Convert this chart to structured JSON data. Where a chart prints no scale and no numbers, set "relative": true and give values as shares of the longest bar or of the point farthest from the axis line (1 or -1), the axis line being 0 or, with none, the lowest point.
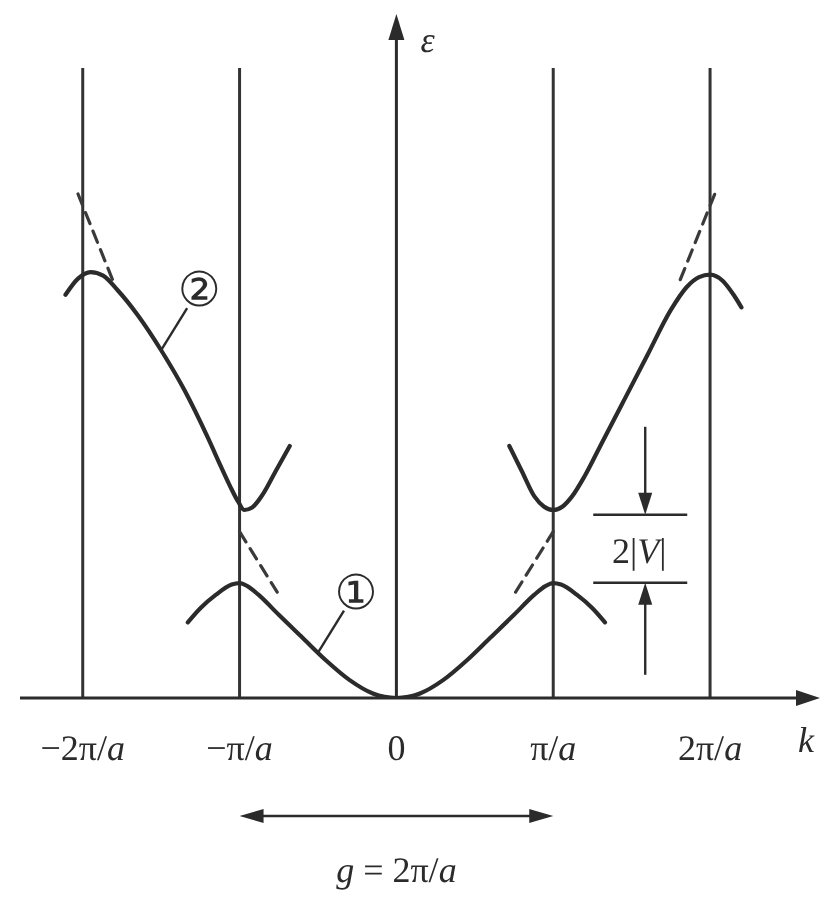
{
  "chart_data": {
    "type": "line",
    "relative": true,
    "xlabel": "k",
    "ylabel": "ε",
    "marker": "none",
    "xlim": [
      -2.4,
      2.65
    ],
    "xticks": [
      {
        "value": -2,
        "label": "−2π/a"
      },
      {
        "value": -1,
        "label": "−π/a"
      },
      0,
      {
        "value": 1,
        "label": "π/a"
      },
      {
        "value": 2,
        "label": "2π/a"
      }
    ],
    "series": [
      {
        "color": "#2b2b2b",
        "x": [
          -1.33,
          -1.25,
          -1.15,
          -1.05,
          -1,
          -0.95,
          -0.88,
          -0.75,
          -0.6,
          -0.45,
          -0.3,
          -0.15,
          0,
          0.15,
          0.3,
          0.45,
          0.6,
          0.75,
          0.88,
          0.95,
          1,
          1.05,
          1.15,
          1.25,
          1.33
        ],
        "values": [
          0.15,
          0.178,
          0.205,
          0.225,
          0.228,
          0.222,
          0.205,
          0.165,
          0.12,
          0.075,
          0.036,
          0.009,
          0,
          0.009,
          0.036,
          0.075,
          0.12,
          0.165,
          0.205,
          0.222,
          0.228,
          0.225,
          0.205,
          0.178,
          0.15
        ]
      },
      {
        "color": "#2b2b2b",
        "x": [
          -2.11,
          -2.03,
          -1.95,
          -1.87,
          -1.78,
          -1.65,
          -1.5,
          -1.35,
          -1.2,
          -1.12,
          -1.06,
          -1.01,
          -0.97,
          -0.92,
          -0.85,
          -0.77,
          -0.68,
          0,
          0.72,
          0.8,
          0.88,
          0.94,
          1,
          1.06,
          1.12,
          1.2,
          1.3,
          1.45,
          1.6,
          1.75,
          1.85,
          1.93,
          2,
          2.08,
          2.15,
          2.2
        ],
        "values": [
          0.8,
          0.832,
          0.845,
          0.838,
          0.81,
          0.76,
          0.69,
          0.61,
          0.515,
          0.46,
          0.42,
          0.39,
          0.373,
          0.378,
          0.405,
          0.45,
          0.5,
          null,
          0.5,
          0.45,
          0.4,
          0.38,
          0.373,
          0.38,
          0.4,
          0.44,
          0.5,
          0.59,
          0.68,
          0.77,
          0.815,
          0.835,
          0.84,
          0.828,
          0.8,
          0.775
        ]
      },
      {
        "color": "#3a3a3a",
        "line_style": "dashed",
        "x": [
          -2.03,
          -1.81,
          -1.4,
          -1,
          -0.76,
          0,
          0.76,
          1,
          1.4,
          1.81,
          2.03
        ],
        "values": [
          1,
          0.83,
          null,
          0.33,
          0.21,
          null,
          0.21,
          0.33,
          null,
          0.83,
          1
        ]
      }
    ],
    "ref_lines": [
      {
        "axis": "x",
        "value": -2,
        "color": "#333333"
      },
      {
        "axis": "x",
        "value": -1,
        "color": "#333333"
      },
      {
        "axis": "x",
        "value": 1,
        "color": "#333333"
      },
      {
        "axis": "x",
        "value": 2,
        "color": "#333333"
      }
    ],
    "annotations": [
      {
        "text": "①",
        "x": -0.5,
        "y": 0.09
      },
      {
        "text": "②",
        "x": -1.5,
        "y": 0.69
      },
      {
        "text": "2|V|",
        "x": 1,
        "y": 0.3
      },
      "g = 2π/a"
    ]
  }
}
